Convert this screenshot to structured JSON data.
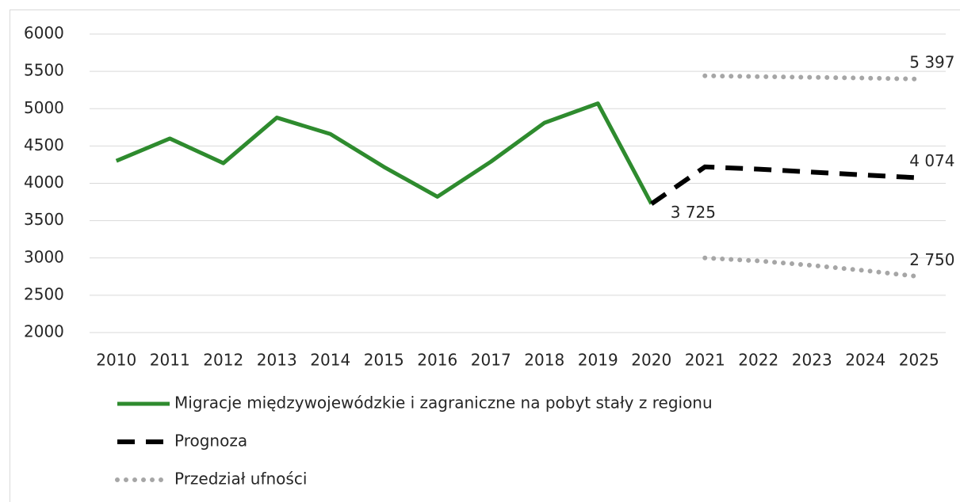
{
  "chart_data": {
    "type": "line",
    "categories": [
      "2010",
      "2011",
      "2012",
      "2013",
      "2014",
      "2015",
      "2016",
      "2017",
      "2018",
      "2019",
      "2020",
      "2021",
      "2022",
      "2023",
      "2024",
      "2025"
    ],
    "ylim": [
      2000,
      6000
    ],
    "yticks": [
      2000,
      2500,
      3000,
      3500,
      4000,
      4500,
      5000,
      5500,
      6000
    ],
    "grid": true,
    "legend": "bottom",
    "series": [
      {
        "name": "Migracje międzywojewódzkie i zagraniczne na pobyt stały z regionu",
        "color": "#2e8b2e",
        "style": "solid",
        "values": [
          4300,
          4600,
          4270,
          4880,
          4660,
          4220,
          3820,
          4290,
          4810,
          5070,
          3725,
          null,
          null,
          null,
          null,
          null
        ]
      },
      {
        "name": "Prognoza",
        "color": "#000000",
        "style": "dashed",
        "values": [
          null,
          null,
          null,
          null,
          null,
          null,
          null,
          null,
          null,
          null,
          3725,
          4220,
          4190,
          4150,
          4110,
          4074
        ],
        "value_labels": [
          null,
          null,
          null,
          null,
          null,
          null,
          null,
          null,
          null,
          null,
          "3 725",
          null,
          null,
          null,
          null,
          "4 074"
        ]
      },
      {
        "name": "Przedział ufności",
        "color": "#a6a6a6",
        "style": "dotted",
        "values": [
          null,
          null,
          null,
          null,
          null,
          null,
          null,
          null,
          null,
          null,
          null,
          5440,
          5430,
          5420,
          5410,
          5397
        ],
        "value_labels": [
          null,
          null,
          null,
          null,
          null,
          null,
          null,
          null,
          null,
          null,
          null,
          null,
          null,
          null,
          null,
          "5 397"
        ]
      },
      {
        "color": "#a6a6a6",
        "style": "dotted",
        "values": [
          null,
          null,
          null,
          null,
          null,
          null,
          null,
          null,
          null,
          null,
          null,
          3000,
          2960,
          2900,
          2830,
          2750
        ],
        "value_labels": [
          null,
          null,
          null,
          null,
          null,
          null,
          null,
          null,
          null,
          null,
          null,
          null,
          null,
          null,
          null,
          "2 750"
        ]
      }
    ]
  }
}
